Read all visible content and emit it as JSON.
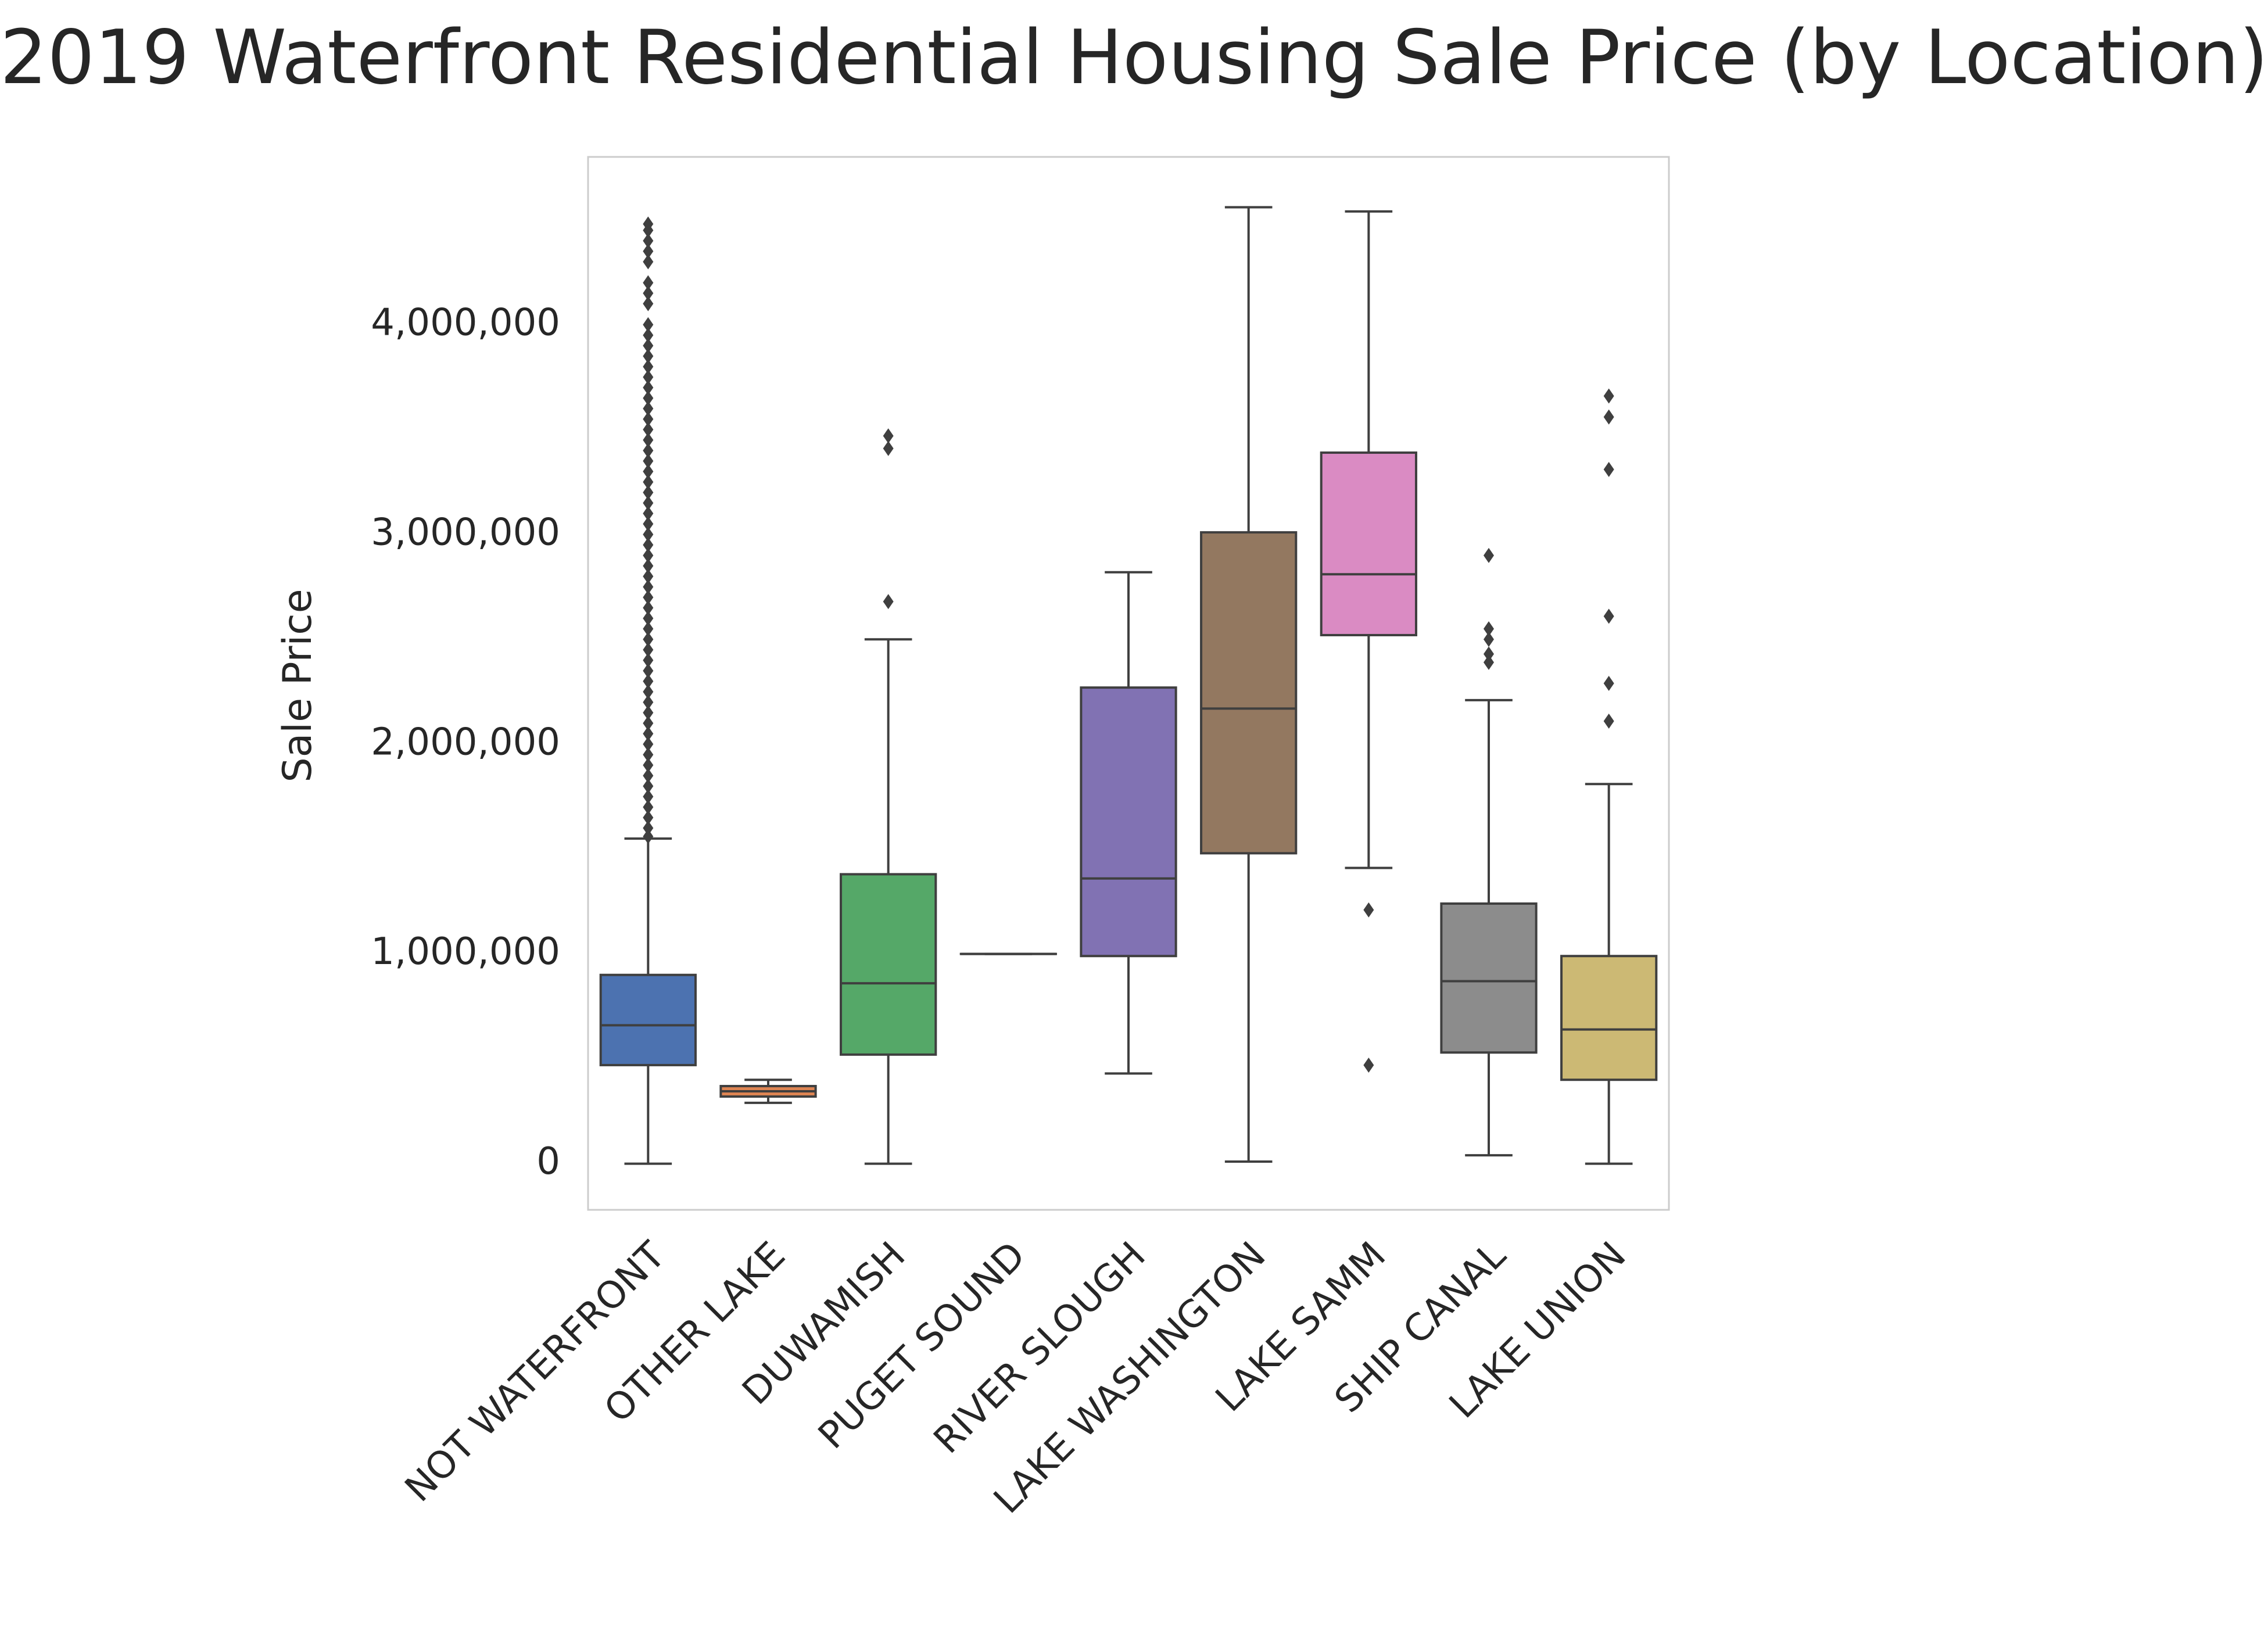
{
  "chart_data": {
    "type": "box",
    "title": "2019 Waterfront Residential Housing Sale Price (by Location)",
    "xlabel": "",
    "ylabel": "Sale Price",
    "ylim": [
      -220000,
      4800000
    ],
    "y_ticks": [
      {
        "value": 0,
        "label": "0"
      },
      {
        "value": 1000000,
        "label": "1,000,000"
      },
      {
        "value": 2000000,
        "label": "2,000,000"
      },
      {
        "value": 3000000,
        "label": "3,000,000"
      },
      {
        "value": 4000000,
        "label": "4,000,000"
      }
    ],
    "grid": false,
    "legend": "none",
    "categories": [
      {
        "name": "NOT WATERFRONT",
        "color": "#4c72b0",
        "whisker_low": 0,
        "q1": 470000,
        "median": 660000,
        "q3": 900000,
        "whisker_high": 1550000,
        "outliers": [
          1560000,
          1600000,
          1650000,
          1700000,
          1750000,
          1800000,
          1850000,
          1900000,
          1950000,
          2000000,
          2050000,
          2100000,
          2150000,
          2200000,
          2250000,
          2300000,
          2350000,
          2400000,
          2450000,
          2500000,
          2550000,
          2600000,
          2650000,
          2700000,
          2750000,
          2800000,
          2850000,
          2900000,
          2950000,
          3000000,
          3050000,
          3100000,
          3150000,
          3200000,
          3250000,
          3300000,
          3350000,
          3400000,
          3450000,
          3500000,
          3550000,
          3600000,
          3650000,
          3700000,
          3750000,
          3800000,
          3850000,
          3900000,
          3950000,
          4000000,
          4100000,
          4150000,
          4200000,
          4300000,
          4350000,
          4400000,
          4450000,
          4480000
        ]
      },
      {
        "name": "OTHER LAKE",
        "color": "#dd8452",
        "whisker_low": 290000,
        "q1": 320000,
        "median": 345000,
        "q3": 370000,
        "whisker_high": 400000,
        "outliers": []
      },
      {
        "name": "DUWAMISH",
        "color": "#55a868",
        "whisker_low": 0,
        "q1": 520000,
        "median": 860000,
        "q3": 1380000,
        "whisker_high": 2500000,
        "outliers": [
          2680000,
          3410000,
          3470000
        ]
      },
      {
        "name": "PUGET SOUND",
        "color": "#c44e52",
        "whisker_low": 1000000,
        "q1": 1000000,
        "median": 1000000,
        "q3": 1000000,
        "whisker_high": 1000000,
        "outliers": []
      },
      {
        "name": "RIVER SLOUGH",
        "color": "#8172b3",
        "whisker_low": 430000,
        "q1": 990000,
        "median": 1360000,
        "q3": 2270000,
        "whisker_high": 2820000,
        "outliers": []
      },
      {
        "name": "LAKE WASHINGTON",
        "color": "#937860",
        "whisker_low": 10000,
        "q1": 1480000,
        "median": 2170000,
        "q3": 3010000,
        "whisker_high": 4560000,
        "outliers": []
      },
      {
        "name": "LAKE SAMM",
        "color": "#da8bc3",
        "whisker_low": 1410000,
        "q1": 2520000,
        "median": 2810000,
        "q3": 3390000,
        "whisker_high": 4540000,
        "outliers": [
          1210000,
          470000
        ]
      },
      {
        "name": "SHIP CANAL",
        "color": "#8c8c8c",
        "whisker_low": 40000,
        "q1": 530000,
        "median": 870000,
        "q3": 1240000,
        "whisker_high": 2210000,
        "outliers": [
          2900000,
          2550000,
          2500000,
          2430000,
          2390000
        ]
      },
      {
        "name": "LAKE UNION",
        "color": "#ccb974",
        "whisker_low": 0,
        "q1": 400000,
        "median": 640000,
        "q3": 990000,
        "whisker_high": 1810000,
        "outliers": [
          3660000,
          3560000,
          3310000,
          2610000,
          2290000,
          2110000
        ]
      }
    ]
  }
}
